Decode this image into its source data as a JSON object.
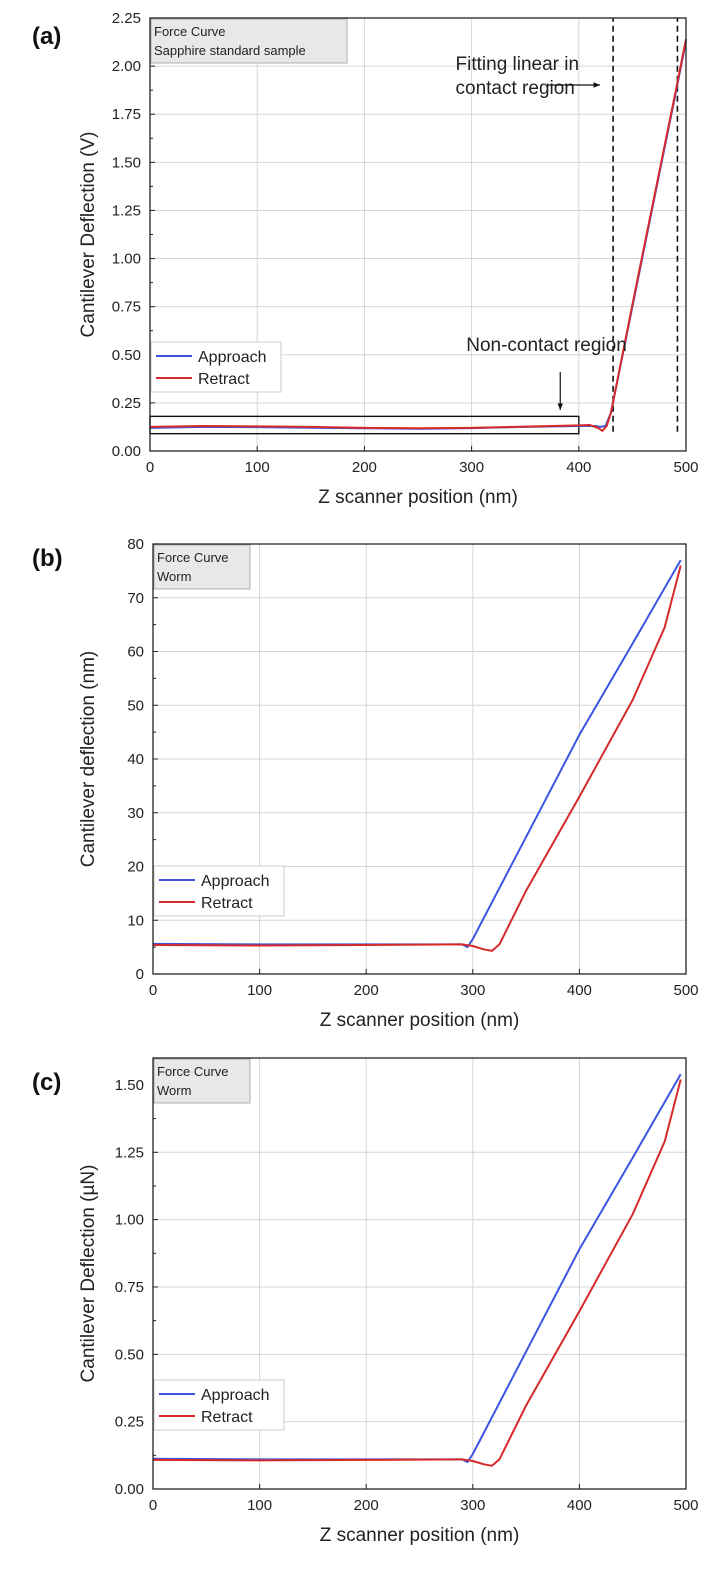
{
  "colors": {
    "approach": "#3b55e0",
    "retract": "#d62a2a",
    "grid": "#d6d6d6",
    "title_box": "#e8e8e8"
  },
  "chart_data": [
    {
      "panel_label": "(a)",
      "type": "line",
      "title_box_lines": [
        "Force Curve",
        "Sapphire standard sample"
      ],
      "xlabel": "Z scanner position (nm)",
      "ylabel": "Cantilever Deflection (V)",
      "xlim": [
        0,
        500
      ],
      "ylim": [
        0,
        2.25
      ],
      "xticks": [
        0,
        100,
        200,
        300,
        400,
        500
      ],
      "xtick_labels": [
        "0",
        "100",
        "200",
        "300",
        "400",
        "500"
      ],
      "yticks": [
        0,
        0.25,
        0.5,
        0.75,
        1.0,
        1.25,
        1.5,
        1.75,
        2.0,
        2.25
      ],
      "ytick_labels": [
        "0.00",
        "0.25",
        "0.50",
        "0.75",
        "1.00",
        "1.25",
        "1.50",
        "1.75",
        "2.00",
        "2.25"
      ],
      "grid": true,
      "legend_placement": "lower-left",
      "series": [
        {
          "name": "Approach",
          "color_key": "approach",
          "x": [
            0,
            50,
            100,
            150,
            200,
            250,
            300,
            350,
            400,
            415,
            420,
            425,
            430,
            450,
            470,
            490,
            500
          ],
          "y": [
            0.12,
            0.125,
            0.124,
            0.121,
            0.118,
            0.116,
            0.119,
            0.125,
            0.13,
            0.13,
            0.125,
            0.13,
            0.2,
            0.75,
            1.3,
            1.85,
            2.13
          ]
        },
        {
          "name": "Retract",
          "color_key": "retract",
          "x": [
            0,
            50,
            100,
            150,
            200,
            250,
            300,
            350,
            400,
            410,
            418,
            422,
            426,
            430,
            450,
            470,
            490,
            500
          ],
          "y": [
            0.125,
            0.13,
            0.128,
            0.125,
            0.12,
            0.118,
            0.12,
            0.127,
            0.133,
            0.135,
            0.12,
            0.105,
            0.13,
            0.2,
            0.76,
            1.31,
            1.86,
            2.14
          ]
        }
      ],
      "annotations": [
        {
          "kind": "text_arrow",
          "lines": [
            "Non-contact region"
          ],
          "text_x": 295,
          "text_y": 0.52,
          "arrow_from": [
            295,
            0.4
          ],
          "arrow_to": [
            295,
            0.19
          ]
        },
        {
          "kind": "text_arrow",
          "lines": [
            "Fitting linear in",
            "contact region"
          ],
          "text_x": 285,
          "text_y": 1.98,
          "arrow_from": [
            360,
            1.9
          ],
          "arrow_to": [
            525,
            1.9
          ]
        },
        {
          "kind": "rect",
          "x0": 0,
          "x1": 400,
          "y0": 0.09,
          "y1": 0.18
        },
        {
          "kind": "vline_dashed",
          "x": 432,
          "y0": 0.1,
          "y1": 2.25
        },
        {
          "kind": "vline_dashed",
          "x": 492,
          "y0": 0.1,
          "y1": 2.25
        }
      ]
    },
    {
      "panel_label": "(b)",
      "type": "line",
      "title_box_lines": [
        "Force Curve",
        "Worm"
      ],
      "xlabel": "Z scanner position (nm)",
      "ylabel": "Cantilever deflection (nm)",
      "xlim": [
        0,
        500
      ],
      "ylim": [
        0,
        80
      ],
      "xticks": [
        0,
        100,
        200,
        300,
        400,
        500
      ],
      "xtick_labels": [
        "0",
        "100",
        "200",
        "300",
        "400",
        "500"
      ],
      "yticks": [
        0,
        10,
        20,
        30,
        40,
        50,
        60,
        70,
        80
      ],
      "ytick_labels": [
        "0",
        "10",
        "20",
        "30",
        "40",
        "50",
        "60",
        "70",
        "80"
      ],
      "grid": true,
      "legend_placement": "lower-left",
      "series": [
        {
          "name": "Approach",
          "color_key": "approach",
          "x": [
            0,
            100,
            200,
            280,
            290,
            295,
            300,
            350,
            400,
            450,
            495
          ],
          "y": [
            5.6,
            5.5,
            5.5,
            5.5,
            5.5,
            5.0,
            6.5,
            25.5,
            44.5,
            61.5,
            77
          ]
        },
        {
          "name": "Retract",
          "color_key": "retract",
          "x": [
            0,
            100,
            200,
            290,
            300,
            310,
            318,
            325,
            350,
            400,
            450,
            480,
            495
          ],
          "y": [
            5.4,
            5.3,
            5.4,
            5.5,
            5.2,
            4.6,
            4.3,
            5.5,
            15.5,
            33,
            51,
            64.5,
            76
          ]
        }
      ],
      "annotations": []
    },
    {
      "panel_label": "(c)",
      "type": "line",
      "title_box_lines": [
        "Force Curve",
        "Worm"
      ],
      "xlabel": "Z scanner position (nm)",
      "ylabel": "Cantilever Deflection (µN)",
      "xlim": [
        0,
        500
      ],
      "ylim": [
        0,
        1.6
      ],
      "xticks": [
        0,
        100,
        200,
        300,
        400,
        500
      ],
      "xtick_labels": [
        "0",
        "100",
        "200",
        "300",
        "400",
        "500"
      ],
      "yticks": [
        0,
        0.25,
        0.5,
        0.75,
        1.0,
        1.25,
        1.5
      ],
      "ytick_labels": [
        "0.00",
        "0.25",
        "0.50",
        "0.75",
        "1.00",
        "1.25",
        "1.50"
      ],
      "grid": true,
      "legend_placement": "lower-left",
      "series": [
        {
          "name": "Approach",
          "color_key": "approach",
          "x": [
            0,
            100,
            200,
            280,
            290,
            295,
            300,
            350,
            400,
            450,
            495
          ],
          "y": [
            0.112,
            0.11,
            0.11,
            0.11,
            0.11,
            0.1,
            0.13,
            0.51,
            0.89,
            1.23,
            1.54
          ]
        },
        {
          "name": "Retract",
          "color_key": "retract",
          "x": [
            0,
            100,
            200,
            290,
            300,
            310,
            318,
            325,
            350,
            400,
            450,
            480,
            495
          ],
          "y": [
            0.108,
            0.106,
            0.108,
            0.11,
            0.104,
            0.092,
            0.086,
            0.11,
            0.31,
            0.66,
            1.02,
            1.29,
            1.52
          ]
        }
      ],
      "annotations": []
    }
  ]
}
